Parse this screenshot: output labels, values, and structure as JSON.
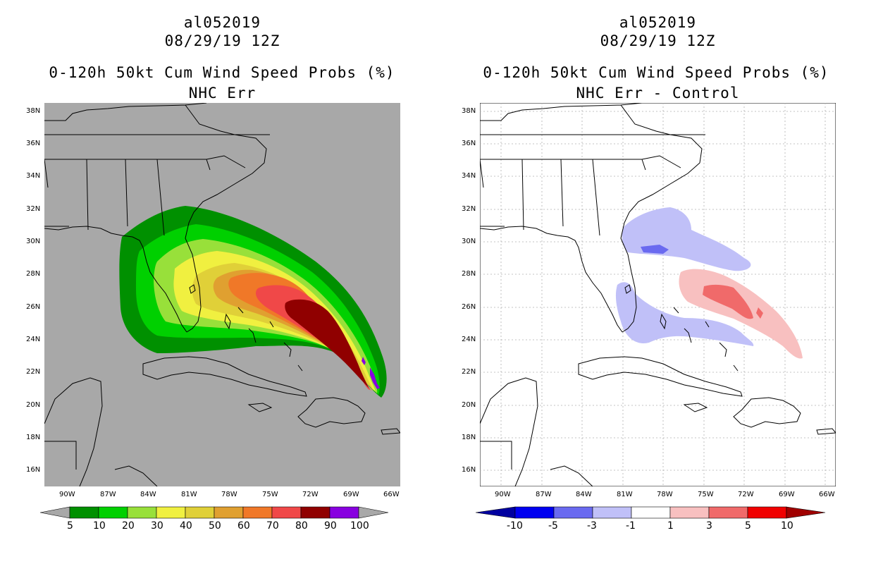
{
  "panels": [
    {
      "storm_id": "al052019",
      "datetime": "08/29/19 12Z",
      "title": "0-120h 50kt Cum Wind Speed Probs (%)",
      "subtitle": "NHC Err",
      "lat_labels": [
        "38N",
        "36N",
        "34N",
        "32N",
        "30N",
        "28N",
        "26N",
        "24N",
        "22N",
        "20N",
        "18N",
        "16N"
      ],
      "lon_labels": [
        "90W",
        "87W",
        "84W",
        "81W",
        "78W",
        "75W",
        "72W",
        "69W",
        "66W"
      ],
      "colorbar_labels": [
        "5",
        "10",
        "20",
        "30",
        "40",
        "50",
        "60",
        "70",
        "80",
        "90",
        "100"
      ],
      "colorbar_colors": [
        "#009000",
        "#00d000",
        "#98e03a",
        "#f0f040",
        "#e0d038",
        "#e0a030",
        "#f07828",
        "#f04848",
        "#900000",
        "#8800e0"
      ],
      "background_color": "#a8a8a8"
    },
    {
      "storm_id": "al052019",
      "datetime": "08/29/19 12Z",
      "title": "0-120h 50kt Cum Wind Speed Probs (%)",
      "subtitle": "NHC Err - Control",
      "lat_labels": [
        "38N",
        "36N",
        "34N",
        "32N",
        "30N",
        "28N",
        "26N",
        "24N",
        "22N",
        "20N",
        "18N",
        "16N"
      ],
      "lon_labels": [
        "90W",
        "87W",
        "84W",
        "81W",
        "78W",
        "75W",
        "72W",
        "69W",
        "66W"
      ],
      "colorbar_labels": [
        "-10",
        "-5",
        "-3",
        "-1",
        "1",
        "3",
        "5",
        "10"
      ],
      "colorbar_colors": [
        "#0000a0",
        "#0000f0",
        "#6a6af0",
        "#c0c0f8",
        "#ffffff",
        "#f8c0c0",
        "#f06a6a",
        "#f00000",
        "#a00000"
      ],
      "background_color": "#ffffff"
    }
  ]
}
